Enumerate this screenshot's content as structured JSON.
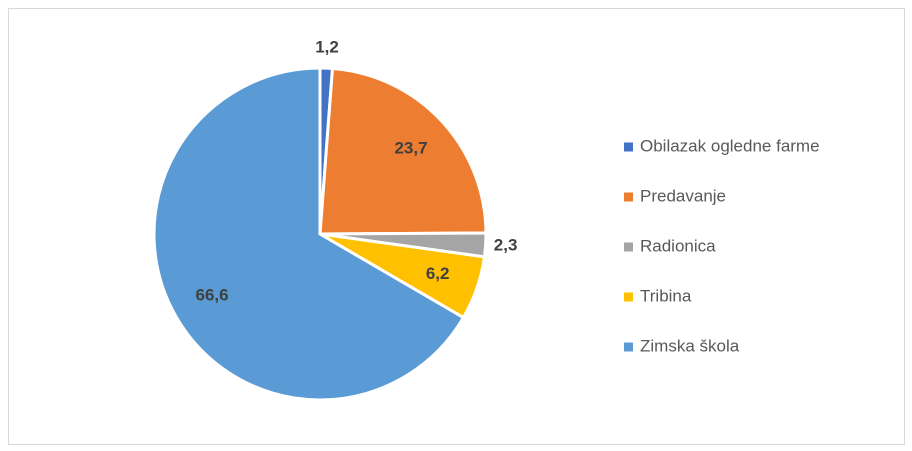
{
  "chart_data": {
    "type": "pie",
    "categories": [
      "Obilazak ogledne farme",
      "Predavanje",
      "Radionica",
      "Tribina",
      "Zimska škola"
    ],
    "values": [
      1.2,
      23.7,
      2.3,
      6.2,
      66.6
    ],
    "value_labels": [
      "1,2",
      "23,7",
      "2,3",
      "6,2",
      "66,6"
    ],
    "colors": [
      "#4472c4",
      "#ed7d31",
      "#a5a5a5",
      "#ffc000",
      "#5b9bd5"
    ],
    "legend": "right"
  }
}
